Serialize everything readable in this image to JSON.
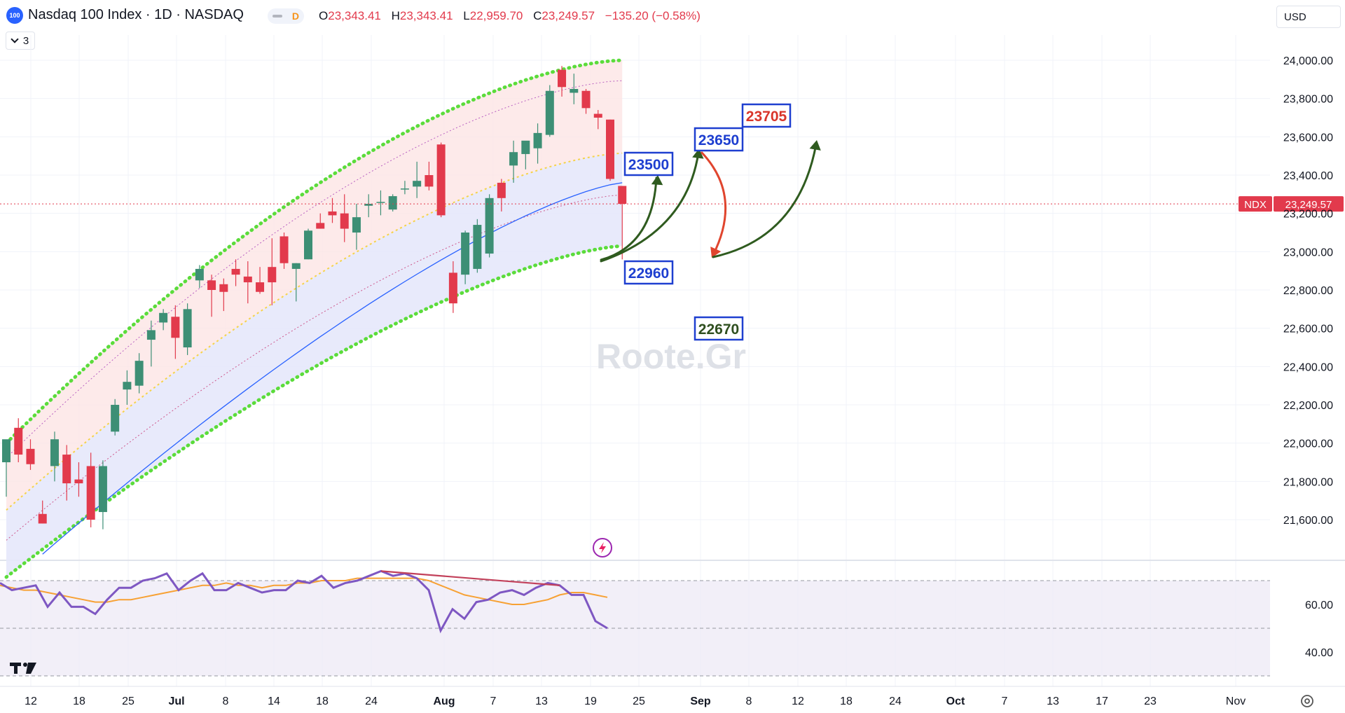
{
  "header": {
    "logo_text": "100",
    "title": "Nasdaq 100 Index · 1D · NASDAQ",
    "interval_badge": "D",
    "ohlc": {
      "o_label": "O",
      "o": "23,343.41",
      "h_label": "H",
      "h": "23,343.41",
      "l_label": "L",
      "l": "22,959.70",
      "c_label": "C",
      "c": "23,249.57",
      "change": "−135.20 (−0.58%)"
    },
    "currency": "USD",
    "indicator_count": "3"
  },
  "colors": {
    "up": "#26a69a",
    "up_body": "#3d8f75",
    "down": "#e23a4c",
    "rsi": "#7e57c2",
    "rsi_ma": "#f7a134",
    "channel": "#5bdc3b",
    "ema": "#2962ff"
  },
  "watermark": "Roote.Gr",
  "chart_data": [
    {
      "type": "candlestick",
      "title": "Nasdaq 100 Index · 1D · NASDAQ",
      "price_label": {
        "symbol": "NDX",
        "value": "23,249.57",
        "price": 23249.57
      },
      "y_ticks": [
        "24,000.00",
        "23,800.00",
        "23,600.00",
        "23,400.00",
        "23,200.00",
        "23,000.00",
        "22,800.00",
        "22,600.00",
        "22,400.00",
        "22,200.00",
        "22,000.00",
        "21,800.00",
        "21,600.00"
      ],
      "y_tick_values": [
        24000,
        23800,
        23600,
        23400,
        23200,
        23000,
        22800,
        22600,
        22400,
        22200,
        22000,
        21800,
        21600
      ],
      "x_ticks": [
        "12",
        "18",
        "25",
        "Jul",
        "8",
        "14",
        "18",
        "24",
        "Aug",
        "7",
        "13",
        "19",
        "25",
        "Sep",
        "8",
        "12",
        "18",
        "24",
        "Oct",
        "7",
        "13",
        "17",
        "23",
        "Nov"
      ],
      "x_tick_bold": [
        "Jul",
        "Aug",
        "Sep",
        "Oct"
      ],
      "candles": [
        {
          "o": 21900,
          "h": 22000,
          "l": 21720,
          "c": 22020
        },
        {
          "o": 22080,
          "h": 22130,
          "l": 21900,
          "c": 21940
        },
        {
          "o": 21970,
          "h": 22020,
          "l": 21860,
          "c": 21890
        },
        {
          "o": 21630,
          "h": 21700,
          "l": 21580,
          "c": 21580
        },
        {
          "o": 21880,
          "h": 22060,
          "l": 21800,
          "c": 22020
        },
        {
          "o": 21940,
          "h": 21990,
          "l": 21700,
          "c": 21790
        },
        {
          "o": 21810,
          "h": 21900,
          "l": 21720,
          "c": 21790
        },
        {
          "o": 21880,
          "h": 21950,
          "l": 21560,
          "c": 21600
        },
        {
          "o": 21640,
          "h": 21910,
          "l": 21550,
          "c": 21880
        },
        {
          "o": 22060,
          "h": 22230,
          "l": 22040,
          "c": 22200
        },
        {
          "o": 22280,
          "h": 22380,
          "l": 22200,
          "c": 22320
        },
        {
          "o": 22300,
          "h": 22470,
          "l": 22260,
          "c": 22430
        },
        {
          "o": 22540,
          "h": 22640,
          "l": 22400,
          "c": 22590
        },
        {
          "o": 22630,
          "h": 22700,
          "l": 22590,
          "c": 22680
        },
        {
          "o": 22660,
          "h": 22720,
          "l": 22440,
          "c": 22550
        },
        {
          "o": 22500,
          "h": 22730,
          "l": 22460,
          "c": 22700
        },
        {
          "o": 22850,
          "h": 22930,
          "l": 22810,
          "c": 22910
        },
        {
          "o": 22850,
          "h": 22880,
          "l": 22660,
          "c": 22800
        },
        {
          "o": 22830,
          "h": 22860,
          "l": 22690,
          "c": 22790
        },
        {
          "o": 22910,
          "h": 22960,
          "l": 22820,
          "c": 22880
        },
        {
          "o": 22870,
          "h": 22950,
          "l": 22730,
          "c": 22840
        },
        {
          "o": 22840,
          "h": 22920,
          "l": 22780,
          "c": 22790
        },
        {
          "o": 22920,
          "h": 23070,
          "l": 22720,
          "c": 22840
        },
        {
          "o": 23080,
          "h": 23100,
          "l": 22910,
          "c": 22940
        },
        {
          "o": 22910,
          "h": 22940,
          "l": 22740,
          "c": 22940
        },
        {
          "o": 22960,
          "h": 23120,
          "l": 22960,
          "c": 23110
        },
        {
          "o": 23150,
          "h": 23200,
          "l": 23120,
          "c": 23120
        },
        {
          "o": 23210,
          "h": 23280,
          "l": 23150,
          "c": 23190
        },
        {
          "o": 23200,
          "h": 23300,
          "l": 23050,
          "c": 23120
        },
        {
          "o": 23100,
          "h": 23250,
          "l": 23010,
          "c": 23180
        },
        {
          "o": 23240,
          "h": 23300,
          "l": 23180,
          "c": 23250
        },
        {
          "o": 23260,
          "h": 23320,
          "l": 23190,
          "c": 23260
        },
        {
          "o": 23220,
          "h": 23300,
          "l": 23210,
          "c": 23290
        },
        {
          "o": 23330,
          "h": 23370,
          "l": 23300,
          "c": 23330
        },
        {
          "o": 23340,
          "h": 23470,
          "l": 23280,
          "c": 23370
        },
        {
          "o": 23400,
          "h": 23470,
          "l": 23320,
          "c": 23340
        },
        {
          "o": 23560,
          "h": 23570,
          "l": 23180,
          "c": 23190
        },
        {
          "o": 22890,
          "h": 22950,
          "l": 22680,
          "c": 22730
        },
        {
          "o": 22880,
          "h": 23110,
          "l": 22830,
          "c": 23100
        },
        {
          "o": 22910,
          "h": 23170,
          "l": 22890,
          "c": 23140
        },
        {
          "o": 22990,
          "h": 23300,
          "l": 22970,
          "c": 23280
        },
        {
          "o": 23360,
          "h": 23380,
          "l": 23210,
          "c": 23280
        },
        {
          "o": 23450,
          "h": 23580,
          "l": 23360,
          "c": 23520
        },
        {
          "o": 23510,
          "h": 23570,
          "l": 23430,
          "c": 23580
        },
        {
          "o": 23540,
          "h": 23670,
          "l": 23460,
          "c": 23620
        },
        {
          "o": 23610,
          "h": 23870,
          "l": 23600,
          "c": 23840
        },
        {
          "o": 23950,
          "h": 23970,
          "l": 23810,
          "c": 23860
        },
        {
          "o": 23830,
          "h": 23930,
          "l": 23770,
          "c": 23850
        },
        {
          "o": 23840,
          "h": 23850,
          "l": 23720,
          "c": 23750
        },
        {
          "o": 23720,
          "h": 23740,
          "l": 23640,
          "c": 23700
        },
        {
          "o": 23690,
          "h": 23690,
          "l": 23370,
          "c": 23380
        },
        {
          "o": 23343.41,
          "h": 23343.41,
          "l": 22959.7,
          "c": 23249.57
        }
      ],
      "annotations": [
        {
          "label": "23500",
          "color": "#1e3fd0",
          "price": 23500
        },
        {
          "label": "23650",
          "color": "#1e3fd0",
          "price": 23650
        },
        {
          "label": "23705",
          "color": "#d9352a",
          "price": 23705
        },
        {
          "label": "22960",
          "color": "#1e3fd0",
          "price": 22960
        },
        {
          "label": "22670",
          "color": "#2f4f1f",
          "price": 22670
        }
      ],
      "grid": true
    },
    {
      "type": "line",
      "title": "",
      "y_ticks": [
        "60.00",
        "40.00"
      ],
      "y_tick_values": [
        60,
        40
      ],
      "levels": [
        70,
        50,
        30
      ],
      "rsi": [
        69,
        66,
        67,
        68,
        59,
        65,
        59,
        59,
        56,
        62,
        67,
        67,
        70,
        71,
        73,
        66,
        70,
        73,
        66,
        66,
        69,
        67,
        65,
        66,
        66,
        70,
        69,
        72,
        67,
        69,
        70,
        72,
        74,
        72,
        73,
        71,
        66,
        49,
        58,
        54,
        61,
        62,
        65,
        66,
        64,
        67,
        69,
        68,
        64,
        64,
        53,
        50
      ],
      "rsi_ma": [
        68,
        67,
        66,
        66,
        65,
        64,
        63,
        62,
        61,
        61,
        62,
        62,
        63,
        64,
        65,
        66,
        67,
        68,
        68,
        69,
        68,
        68,
        67,
        68,
        68,
        69,
        69,
        70,
        70,
        70,
        71,
        71,
        71,
        71,
        71,
        71,
        70,
        68,
        66,
        64,
        63,
        62,
        61,
        60,
        60,
        61,
        62,
        64,
        65,
        65,
        64,
        63
      ],
      "divergence": [
        74,
        68
      ],
      "grid": true
    }
  ]
}
